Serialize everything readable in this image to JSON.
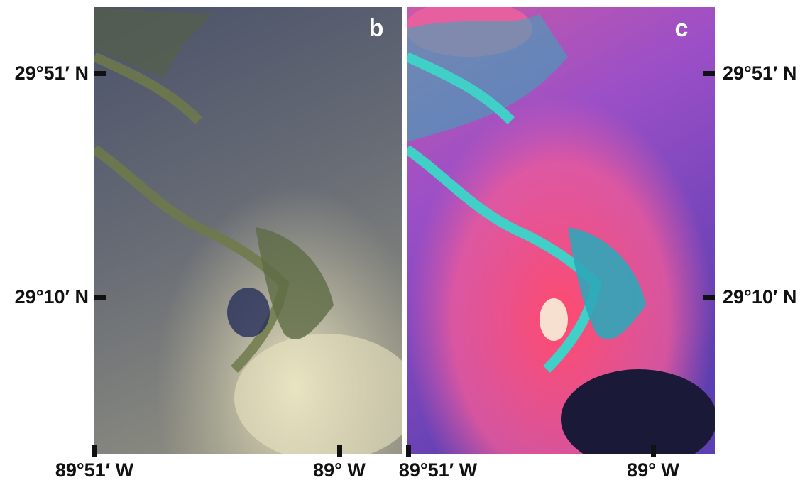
{
  "panels": [
    {
      "label": "b",
      "lat_labels": [
        "29°51′ N",
        "29°10′ N"
      ],
      "lon_labels": [
        "89°51′ W",
        "89° W"
      ]
    },
    {
      "label": "c",
      "lat_labels": [
        "29°51′ N",
        "29°10′ N"
      ],
      "lon_labels": [
        "89°51′ W",
        "89° W"
      ]
    }
  ]
}
